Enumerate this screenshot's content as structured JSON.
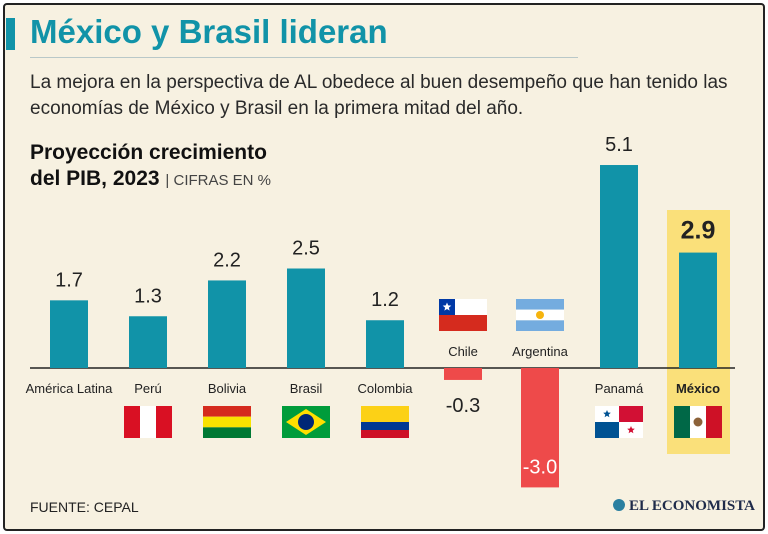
{
  "header": {
    "title": "México y Brasil lideran",
    "subtitle": "La mejora en la perspectiva de AL obedece al buen desempeño que han tenido las economías de México y Brasil en la primera mitad del año."
  },
  "chart_title": {
    "line1": "Proyección crecimiento",
    "line2": "del PIB, 2023",
    "units": "CIFRAS EN %"
  },
  "source": "FUENTE: CEPAL",
  "brand": "EL ECONOMISTA",
  "colors": {
    "accent": "#1193a8",
    "positive": "#1193a8",
    "negative": "#ee4a4a",
    "highlight": "#fae07a",
    "background": "#f7f1e1"
  },
  "chart_data": {
    "type": "bar",
    "title": "Proyección crecimiento del PIB, 2023",
    "unit": "CIFRAS EN %",
    "categories": [
      "América Latina",
      "Perú",
      "Bolivia",
      "Brasil",
      "Colombia",
      "Chile",
      "Argentina",
      "Panamá",
      "México"
    ],
    "values": [
      1.7,
      1.3,
      2.2,
      2.5,
      1.2,
      -0.3,
      -3.0,
      5.1,
      2.9
    ],
    "value_labels": [
      "1.7",
      "1.3",
      "2.2",
      "2.5",
      "1.2",
      "-0.3",
      "-3.0",
      "5.1",
      "2.9"
    ],
    "flags": [
      "",
      "peru-flag",
      "bolivia-flag",
      "brazil-flag",
      "colombia-flag",
      "chile-flag",
      "argentina-flag",
      "panama-flag",
      "mexico-flag"
    ],
    "highlighted": "México",
    "ylim": [
      -3.0,
      5.1
    ],
    "xlabel": "",
    "ylabel": ""
  }
}
